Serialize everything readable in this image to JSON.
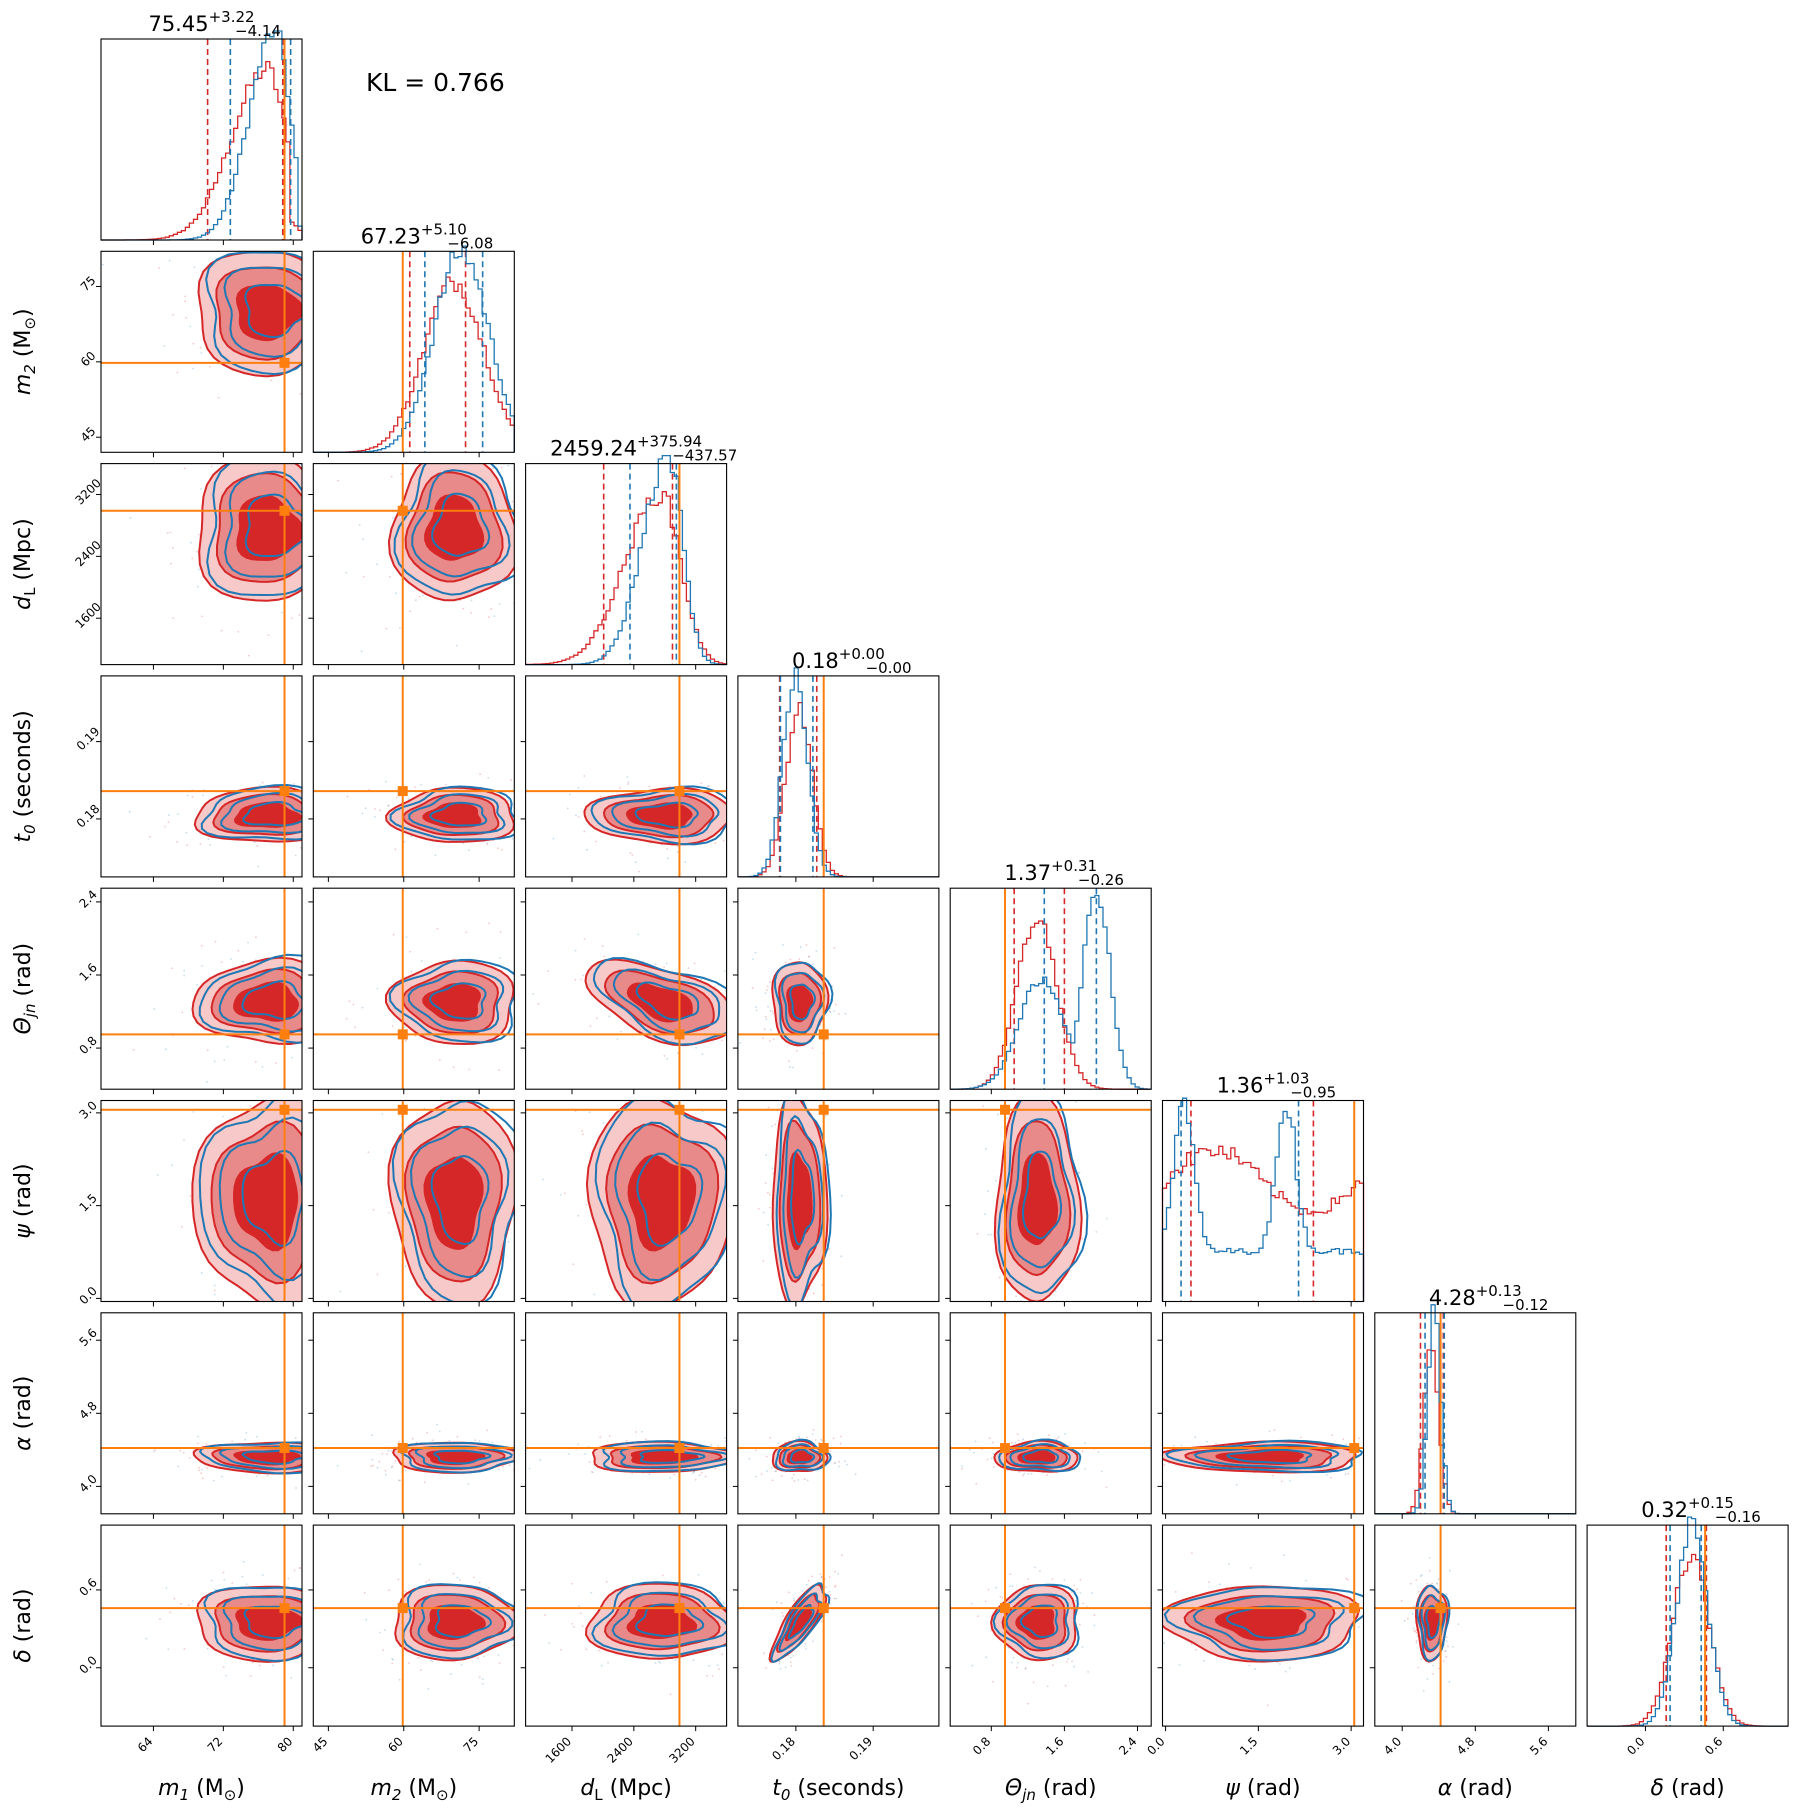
{
  "kl_label": "KL = 0.766",
  "colors": {
    "series_a": "#d62728",
    "series_b": "#1f77b4",
    "truth": "#ff7f0e"
  },
  "chart_data": {
    "type": "corner",
    "grid": false,
    "legend": "none",
    "series": [
      {
        "color": "#d62728",
        "style": "filled 2-D density contours + step histograms"
      },
      {
        "color": "#1f77b4",
        "style": "line 2-D density contours + step histograms"
      }
    ],
    "parameters": [
      {
        "key": "m1",
        "label": "m_1 (M_sun)",
        "axis_label": {
          "sym": "m",
          "sub": "1",
          "unit": " (M",
          "unit_sub": "⊙",
          "unit_end": ")"
        },
        "range": [
          58,
          81
        ],
        "ticks": [
          "64",
          "72",
          "80"
        ],
        "tick_values": [
          64,
          72,
          80
        ],
        "truth": 79.0,
        "title": {
          "median": "75.45",
          "plus": "+3.22",
          "minus": "−4.14"
        },
        "hist_a": {
          "mean": 77.0,
          "sd": 4.0,
          "peak": 0.85,
          "skew": -1.0,
          "q": [
            70.2,
            78.8
          ],
          "clip_high": 79.6
        },
        "hist_b": {
          "mean": 78.0,
          "sd": 3.0,
          "peak": 1.05,
          "skew": -1.0,
          "q": [
            72.8,
            79.7
          ],
          "clip_high": 80.5
        }
      },
      {
        "key": "m2",
        "label": "m_2 (M_sun)",
        "axis_label": {
          "sym": "m",
          "sub": "2",
          "unit": " (M",
          "unit_sub": "⊙",
          "unit_end": ")"
        },
        "range": [
          42,
          82
        ],
        "ticks": [
          "45",
          "60",
          "75"
        ],
        "tick_values": [
          45,
          60,
          75
        ],
        "truth": 59.8,
        "title": {
          "median": "67.23",
          "plus": "+5.10",
          "minus": "−6.08"
        },
        "hist_a": {
          "mean": 70.0,
          "sd": 6.0,
          "peak": 0.85,
          "skew": 0.0,
          "q": [
            61.2,
            72.3
          ]
        },
        "hist_b": {
          "mean": 71.5,
          "sd": 5.5,
          "peak": 1.0,
          "skew": 0.0,
          "q": [
            64.2,
            75.7
          ]
        }
      },
      {
        "key": "dL",
        "label": "d_L (Mpc)",
        "axis_label": {
          "sym": "d",
          "sub": "L",
          "sub_roman": true,
          "unit": " (Mpc)"
        },
        "range": [
          1000,
          3600
        ],
        "ticks": [
          "1600",
          "2400",
          "3200"
        ],
        "tick_values": [
          1600,
          2400,
          3200
        ],
        "truth": 2990,
        "title": {
          "median": "2459.24",
          "plus": "+375.94",
          "minus": "−437.57"
        },
        "hist_a": {
          "mean": 2750,
          "sd": 460,
          "peak": 0.85,
          "skew": -0.6,
          "q": [
            2010,
            2900
          ]
        },
        "hist_b": {
          "mean": 2850,
          "sd": 330,
          "peak": 1.05,
          "skew": -0.4,
          "q": [
            2350,
            2950
          ]
        }
      },
      {
        "key": "t0",
        "label": "t_0 (seconds)",
        "axis_label": {
          "sym": "t",
          "sub": "0",
          "unit": " (seconds)"
        },
        "range": [
          0.1725,
          0.1985
        ],
        "ticks": [
          "0.18",
          "0.19"
        ],
        "tick_values": [
          0.18,
          0.19
        ],
        "truth": 0.1836,
        "title": {
          "median": "0.18",
          "plus": "+0.00",
          "minus": "−0.00"
        },
        "hist_a": {
          "mean": 0.1804,
          "sd": 0.0017,
          "peak": 0.85,
          "skew": 0.0,
          "q": [
            0.1779,
            0.1827
          ]
        },
        "hist_b": {
          "mean": 0.1799,
          "sd": 0.0016,
          "peak": 1.0,
          "skew": 0.0,
          "q": [
            0.178,
            0.1822
          ]
        }
      },
      {
        "key": "theta_jn",
        "label": "Θ_jn (rad)",
        "axis_label": {
          "sym": "Θ",
          "sub": "jn",
          "unit": " (rad)"
        },
        "range": [
          0.35,
          2.55
        ],
        "ticks": [
          "0.8",
          "1.6",
          "2.4"
        ],
        "tick_values": [
          0.8,
          1.6,
          2.4
        ],
        "truth": 0.95,
        "title": {
          "median": "1.37",
          "plus": "+0.31",
          "minus": "−0.26"
        },
        "hist_a": {
          "mean": 1.3,
          "sd": 0.22,
          "peak": 0.85,
          "skew": 0.0,
          "q": [
            1.05,
            1.6
          ]
        },
        "hist_b": {
          "mean": 1.65,
          "sd": 0.35,
          "peak": 1.0,
          "bimodal": [
            1.35,
            1.95
          ],
          "q": [
            1.38,
            1.95
          ]
        }
      },
      {
        "key": "psi",
        "label": "ψ (rad)",
        "axis_label": {
          "sym": "ψ",
          "sub": "",
          "unit": " (rad)"
        },
        "range": [
          -0.05,
          3.2
        ],
        "ticks": [
          "0.0",
          "1.5",
          "3.0"
        ],
        "tick_values": [
          0,
          1.5,
          3.0
        ],
        "truth": 3.05,
        "title": {
          "median": "1.36",
          "plus": "+1.03",
          "minus": "−0.95"
        },
        "hist_a": {
          "flat": true,
          "level": 0.6,
          "q": [
            0.41,
            2.39
          ]
        },
        "hist_b": {
          "flat": true,
          "level": 0.4,
          "modes": [
            0.3,
            1.95
          ],
          "q": [
            0.25,
            2.15
          ]
        }
      },
      {
        "key": "alpha",
        "label": "α (rad)",
        "axis_label": {
          "sym": "α",
          "sub": "",
          "unit": " (rad)"
        },
        "range": [
          3.7,
          5.9
        ],
        "ticks": [
          "4.0",
          "4.8",
          "5.6"
        ],
        "tick_values": [
          4.0,
          4.8,
          5.6
        ],
        "truth": 4.42,
        "title": {
          "median": "4.28",
          "plus": "+0.13",
          "minus": "−0.12"
        },
        "hist_a": {
          "mean": 4.32,
          "sd": 0.08,
          "peak": 0.85,
          "skew": 0.0,
          "q": [
            4.2,
            4.45
          ]
        },
        "hist_b": {
          "mean": 4.35,
          "sd": 0.07,
          "peak": 1.05,
          "skew": 0.0,
          "q": [
            4.25,
            4.46
          ]
        }
      },
      {
        "key": "delta",
        "label": "δ (rad)",
        "axis_label": {
          "sym": "δ",
          "sub": "",
          "unit": " (rad)"
        },
        "range": [
          -0.45,
          1.1
        ],
        "ticks": [
          "0.0",
          "0.6"
        ],
        "tick_values": [
          0.0,
          0.6
        ],
        "truth": 0.46,
        "title": {
          "median": "0.32",
          "plus": "+0.15",
          "minus": "−0.16"
        },
        "hist_a": {
          "mean": 0.35,
          "sd": 0.14,
          "peak": 0.85,
          "skew": 0.0,
          "q": [
            0.16,
            0.47
          ]
        },
        "hist_b": {
          "mean": 0.36,
          "sd": 0.12,
          "peak": 1.0,
          "skew": 0.0,
          "q": [
            0.19,
            0.43
          ]
        }
      }
    ]
  }
}
